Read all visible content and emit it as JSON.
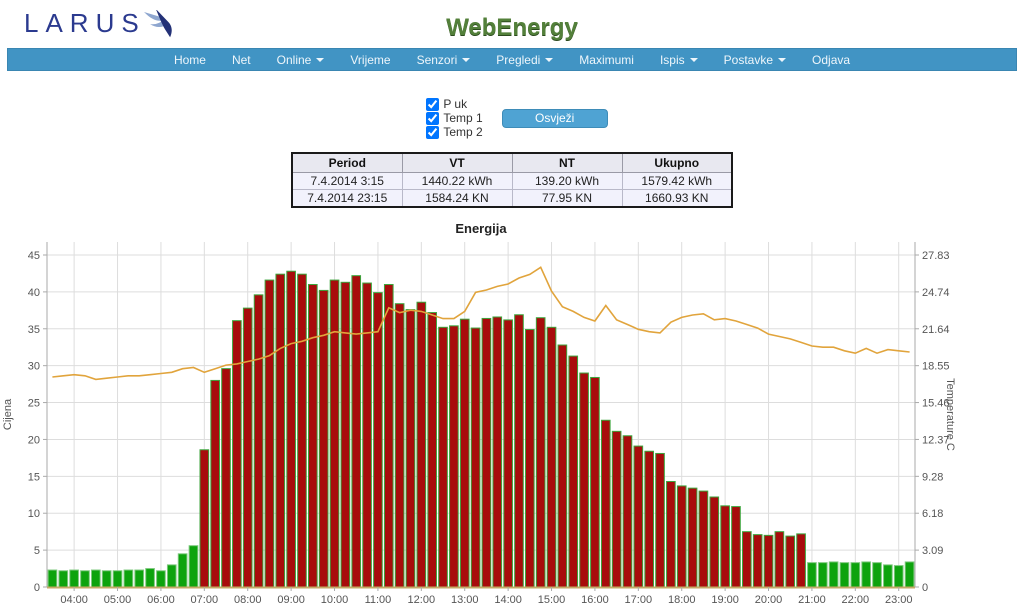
{
  "header": {
    "brand": "LARUS",
    "app_title": "WebEnergy"
  },
  "nav": {
    "items": [
      {
        "label": "Home",
        "dropdown": false
      },
      {
        "label": "Net",
        "dropdown": false
      },
      {
        "label": "Online",
        "dropdown": true
      },
      {
        "label": "Vrijeme",
        "dropdown": false
      },
      {
        "label": "Senzori",
        "dropdown": true
      },
      {
        "label": "Pregledi",
        "dropdown": true
      },
      {
        "label": "Maximumi",
        "dropdown": false
      },
      {
        "label": "Ispis",
        "dropdown": true
      },
      {
        "label": "Postavke",
        "dropdown": true
      },
      {
        "label": "Odjava",
        "dropdown": false
      }
    ]
  },
  "controls": {
    "checkboxes": [
      {
        "label": "P uk",
        "checked": true
      },
      {
        "label": "Temp 1",
        "checked": true
      },
      {
        "label": "Temp 2",
        "checked": true
      }
    ],
    "refresh_button_label": "Osvježi"
  },
  "summary_table": {
    "headers": [
      "Period",
      "VT",
      "NT",
      "Ukupno"
    ],
    "rows": [
      [
        "7.4.2014 3:15",
        "1440.22 kWh",
        "139.20 kWh",
        "1579.42 kWh"
      ],
      [
        "7.4.2014 23:15",
        "1584.24 KN",
        "77.95 KN",
        "1660.93 KN"
      ]
    ]
  },
  "chart_data": {
    "type": "bar",
    "title": "Energija",
    "ylabel_left": "Cijena",
    "ylabel_right": "Temperature C",
    "ylim_left": [
      0,
      46.8
    ],
    "ylim_right": [
      0,
      28.94
    ],
    "grid": true,
    "legend": "none",
    "left_ticks": [
      0,
      5,
      10,
      15,
      20,
      25,
      30,
      35,
      40,
      45
    ],
    "right_ticks": [
      "0",
      "3.09",
      "6.18",
      "9.28",
      "12.37",
      "15.46",
      "18.55",
      "21.64",
      "24.74",
      "27.83"
    ],
    "x_hour_ticks": [
      "04:00",
      "05:00",
      "06:00",
      "07:00",
      "08:00",
      "09:00",
      "10:00",
      "11:00",
      "12:00",
      "13:00",
      "14:00",
      "15:00",
      "16:00",
      "17:00",
      "18:00",
      "19:00",
      "20:00",
      "21:00",
      "22:00",
      "23:00"
    ],
    "times": [
      "03:30",
      "03:45",
      "04:00",
      "04:15",
      "04:30",
      "04:45",
      "05:00",
      "05:15",
      "05:30",
      "05:45",
      "06:00",
      "06:15",
      "06:30",
      "06:45",
      "07:00",
      "07:15",
      "07:30",
      "07:45",
      "08:00",
      "08:15",
      "08:30",
      "08:45",
      "09:00",
      "09:15",
      "09:30",
      "09:45",
      "10:00",
      "10:15",
      "10:30",
      "10:45",
      "11:00",
      "11:15",
      "11:30",
      "11:45",
      "12:00",
      "12:15",
      "12:30",
      "12:45",
      "13:00",
      "13:15",
      "13:30",
      "13:45",
      "14:00",
      "14:15",
      "14:30",
      "14:45",
      "15:00",
      "15:15",
      "15:30",
      "15:45",
      "16:00",
      "16:15",
      "16:30",
      "16:45",
      "17:00",
      "17:15",
      "17:30",
      "17:45",
      "18:00",
      "18:15",
      "18:30",
      "18:45",
      "19:00",
      "19:15",
      "19:30",
      "19:45",
      "20:00",
      "20:15",
      "20:30",
      "20:45",
      "21:00",
      "21:15",
      "21:30",
      "21:45",
      "22:00",
      "22:15",
      "22:30",
      "22:45",
      "23:00",
      "23:15"
    ],
    "series": [
      {
        "name": "P uk",
        "type": "bar",
        "axis": "left",
        "values": [
          2.3,
          2.2,
          2.3,
          2.2,
          2.3,
          2.2,
          2.2,
          2.3,
          2.3,
          2.5,
          2.2,
          3.0,
          4.5,
          5.6,
          18.6,
          28.0,
          29.6,
          36.1,
          37.8,
          39.6,
          41.6,
          42.4,
          42.8,
          42.4,
          41.0,
          40.2,
          41.6,
          41.3,
          42.2,
          41.2,
          39.9,
          41.0,
          38.4,
          37.6,
          38.6,
          37.2,
          35.2,
          35.4,
          36.3,
          35.1,
          36.4,
          36.6,
          36.2,
          36.9,
          34.9,
          36.5,
          35.2,
          32.8,
          31.3,
          29.0,
          28.4,
          22.6,
          21.1,
          20.5,
          19.1,
          18.4,
          18.1,
          14.3,
          13.7,
          13.4,
          13.0,
          12.2,
          11.0,
          10.9,
          7.5,
          7.1,
          7.0,
          7.5,
          6.9,
          7.2,
          3.3,
          3.3,
          3.4,
          3.3,
          3.3,
          3.4,
          3.3,
          3.0,
          2.9,
          3.4
        ],
        "tariff": [
          "NT",
          "NT",
          "NT",
          "NT",
          "NT",
          "NT",
          "NT",
          "NT",
          "NT",
          "NT",
          "NT",
          "NT",
          "NT",
          "NT",
          "VT",
          "VT",
          "VT",
          "VT",
          "VT",
          "VT",
          "VT",
          "VT",
          "VT",
          "VT",
          "VT",
          "VT",
          "VT",
          "VT",
          "VT",
          "VT",
          "VT",
          "VT",
          "VT",
          "VT",
          "VT",
          "VT",
          "VT",
          "VT",
          "VT",
          "VT",
          "VT",
          "VT",
          "VT",
          "VT",
          "VT",
          "VT",
          "VT",
          "VT",
          "VT",
          "VT",
          "VT",
          "VT",
          "VT",
          "VT",
          "VT",
          "VT",
          "VT",
          "VT",
          "VT",
          "VT",
          "VT",
          "VT",
          "VT",
          "VT",
          "VT",
          "VT",
          "VT",
          "VT",
          "VT",
          "VT",
          "NT",
          "NT",
          "NT",
          "NT",
          "NT",
          "NT",
          "NT",
          "NT",
          "NT",
          "NT"
        ]
      },
      {
        "name": "Temp 1",
        "type": "line",
        "axis": "right",
        "values": [
          17.6,
          17.7,
          17.8,
          17.7,
          17.4,
          17.5,
          17.6,
          17.7,
          17.7,
          17.8,
          17.9,
          18.0,
          18.3,
          18.4,
          18.0,
          18.3,
          18.6,
          18.7,
          18.9,
          19.1,
          19.4,
          20.0,
          20.4,
          20.6,
          20.9,
          21.1,
          21.4,
          21.3,
          21.2,
          21.3,
          21.4,
          23.4,
          23.0,
          23.2,
          23.1,
          22.8,
          22.5,
          22.5,
          23.1,
          24.7,
          24.9,
          25.2,
          25.4,
          25.9,
          26.2,
          26.8,
          24.8,
          23.5,
          23.1,
          22.6,
          22.3,
          23.6,
          22.4,
          22.0,
          21.6,
          21.4,
          21.3,
          22.2,
          22.6,
          22.8,
          22.9,
          22.4,
          22.5,
          22.3,
          22.0,
          21.7,
          21.2,
          21.0,
          20.8,
          20.5,
          20.2,
          20.1,
          20.1,
          19.8,
          19.6,
          20.0,
          19.6,
          19.9,
          19.8,
          19.7
        ]
      }
    ],
    "colors": {
      "bar_vt_fill": "#a80c0c",
      "bar_vt_stroke": "#3da53d",
      "bar_nt_fill": "#0da30d",
      "bar_nt_stroke": "#7cc87c",
      "temp_line": "#e1a43c",
      "grid": "#dddddd",
      "axis": "#aaaaaa",
      "baseline": "#c4aa66",
      "tick_text": "#555555",
      "title_text": "#222222"
    }
  },
  "theme": {
    "navbar_bg": "#4194c4",
    "button_bg": "#4fa3d3",
    "brand_navy": "#2b3a8f",
    "logo_green": "#53803a"
  }
}
